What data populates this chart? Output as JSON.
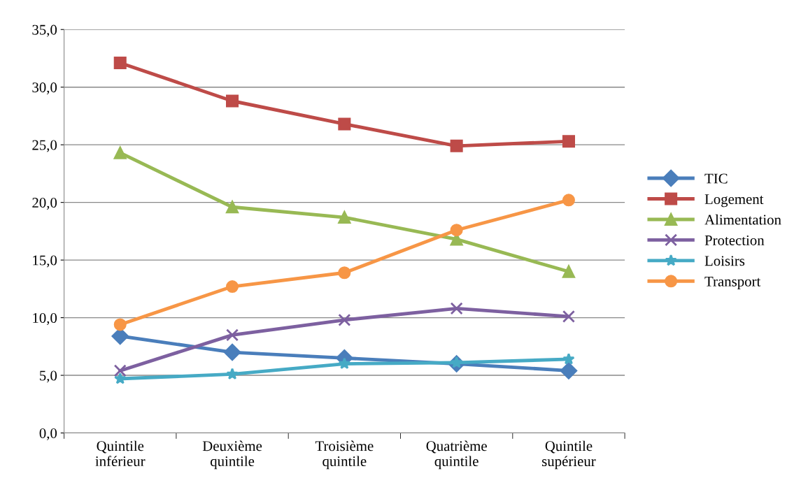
{
  "chart_data": {
    "type": "line",
    "categories": [
      "Quintile\ninférieur",
      "Deuxième\nquintile",
      "Troisième\nquintile",
      "Quatrième\nquintile",
      "Quintile\nsupérieur"
    ],
    "series": [
      {
        "name": "TIC",
        "color": "#4a7ebb",
        "marker": "diamond",
        "values": [
          8.4,
          7.0,
          6.5,
          6.0,
          5.4
        ]
      },
      {
        "name": "Logement",
        "color": "#be4b48",
        "marker": "square",
        "values": [
          32.1,
          28.8,
          26.8,
          24.9,
          25.3
        ]
      },
      {
        "name": "Alimentation",
        "color": "#98b954",
        "marker": "triangle",
        "values": [
          24.3,
          19.6,
          18.7,
          16.8,
          14.0
        ]
      },
      {
        "name": "Protection",
        "color": "#7d60a0",
        "marker": "cross",
        "values": [
          5.4,
          8.5,
          9.8,
          10.8,
          10.1
        ]
      },
      {
        "name": "Loisirs",
        "color": "#46aac5",
        "marker": "star",
        "values": [
          4.7,
          5.1,
          6.0,
          6.1,
          6.4
        ]
      },
      {
        "name": "Transport",
        "color": "#f79646",
        "marker": "circle",
        "values": [
          9.4,
          12.7,
          13.9,
          17.6,
          20.2
        ]
      }
    ],
    "ylim": [
      0,
      35
    ],
    "yticks": [
      {
        "value": 0,
        "label": "0,0"
      },
      {
        "value": 5,
        "label": "5,0"
      },
      {
        "value": 10,
        "label": "10,0"
      },
      {
        "value": 15,
        "label": "15,0"
      },
      {
        "value": 20,
        "label": "20,0"
      },
      {
        "value": 25,
        "label": "25,0"
      },
      {
        "value": 30,
        "label": "30,0"
      },
      {
        "value": 35,
        "label": "35,0"
      }
    ],
    "grid": "y",
    "legend": "right",
    "line_style": "solid"
  }
}
